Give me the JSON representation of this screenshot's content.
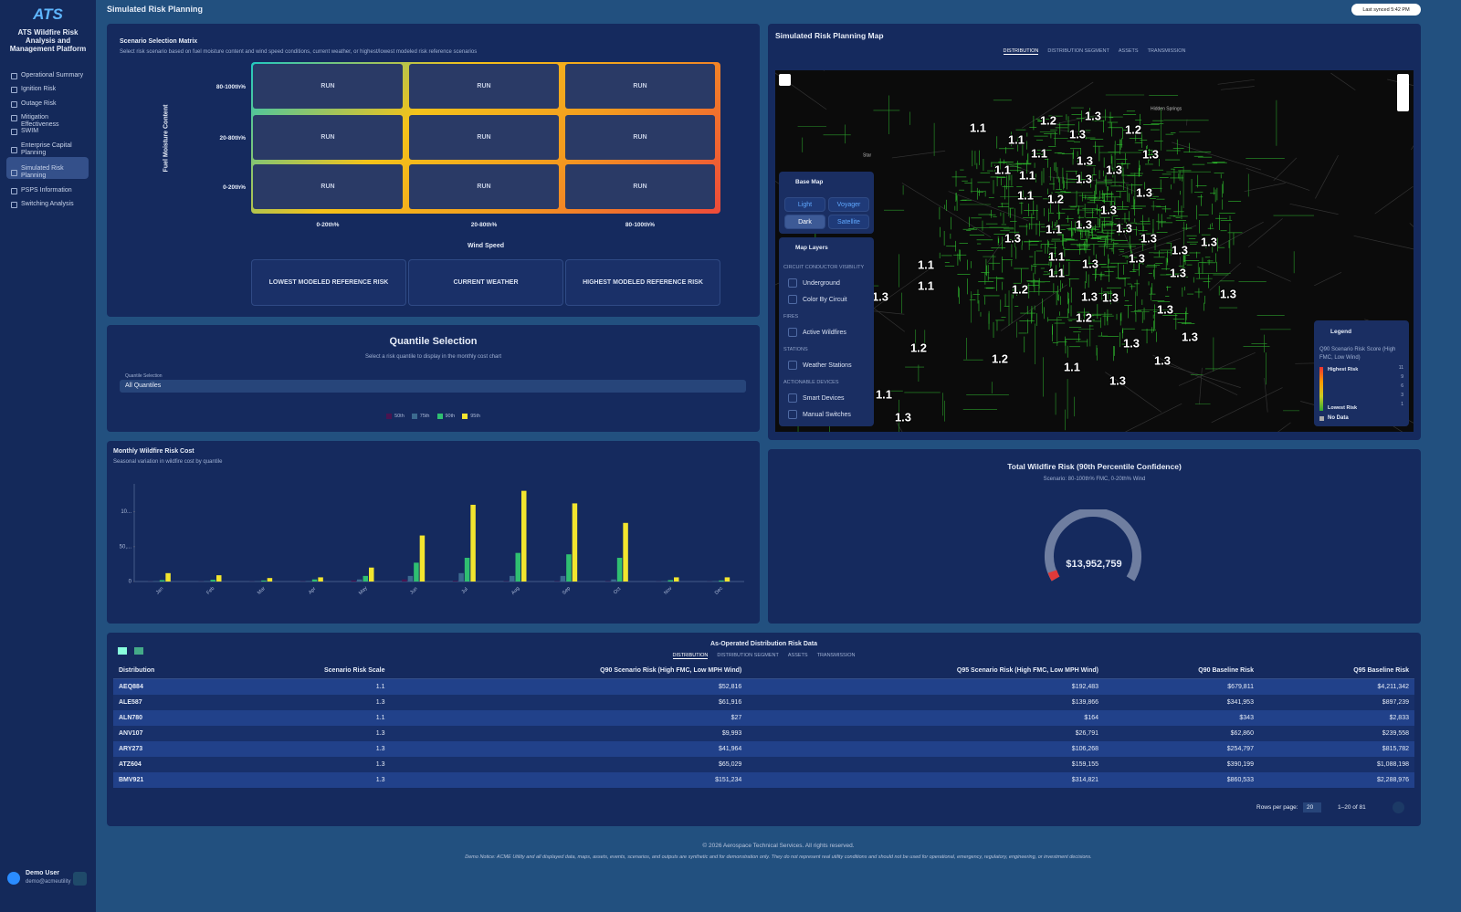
{
  "sidebar": {
    "logo": "ATS",
    "title": "ATS Wildfire Risk Analysis and Management Platform",
    "nav": [
      "Operational Summary",
      "Ignition Risk",
      "Outage Risk",
      "Mitigation Effectiveness",
      "SWIM",
      "Enterprise Capital Planning",
      "Simulated Risk Planning",
      "PSPS Information",
      "Switching Analysis"
    ],
    "user": {
      "name": "Demo User",
      "email": "demo@acmeutility"
    }
  },
  "header": {
    "title": "Simulated Risk Planning",
    "sync": "Last synced 5:42 PM"
  },
  "matrix": {
    "title": "Scenario Selection Matrix",
    "subtitle": "Select risk scenario based on fuel moisture content and wind speed conditions, current weather, or highest/lowest modeled risk reference scenarios",
    "y_label": "Fuel Moisture Content",
    "rows": [
      "80-100th%",
      "20-80th%",
      "0-20th%"
    ],
    "cols": [
      "0-20th%",
      "20-80th%",
      "80-100th%"
    ],
    "x_label": "Wind Speed",
    "cells": [
      [
        "RUN",
        "RUN",
        "RUN"
      ],
      [
        "RUN",
        "RUN",
        "RUN"
      ],
      [
        "RUN",
        "RUN",
        "RUN"
      ]
    ],
    "references": [
      "LOWEST MODELED REFERENCE RISK",
      "CURRENT WEATHER",
      "HIGHEST MODELED REFERENCE RISK"
    ]
  },
  "quantile": {
    "title": "Quantile Selection",
    "subtitle": "Select a risk quantile to display in the monthly cost chart",
    "select_label": "Quantile Selection",
    "select_value": "All Quantiles"
  },
  "chart_data": {
    "type": "bar",
    "title": "Monthly Wildfire Risk Cost",
    "subtitle": "Seasonal variation in wildfire cost by quantile",
    "categories": [
      "Jan",
      "Feb",
      "Mar",
      "Apr",
      "May",
      "Jun",
      "Jul",
      "Aug",
      "Sep",
      "Oct",
      "Nov",
      "Dec"
    ],
    "series": [
      {
        "name": "50th",
        "color": "#4a1450",
        "values": [
          200,
          200,
          200,
          300,
          1500,
          3000,
          1000,
          500,
          500,
          500,
          200,
          200
        ]
      },
      {
        "name": "75th",
        "color": "#3b6a8f",
        "values": [
          500,
          600,
          400,
          700,
          3000,
          8000,
          12000,
          8000,
          8000,
          3000,
          500,
          500
        ]
      },
      {
        "name": "90th",
        "color": "#2fbf71",
        "values": [
          2000,
          2500,
          1500,
          3000,
          8000,
          27000,
          34000,
          41000,
          39000,
          34000,
          2000,
          1500
        ]
      },
      {
        "name": "95th",
        "color": "#f2e52e",
        "values": [
          12000,
          9000,
          5000,
          6000,
          20000,
          66000,
          110000,
          130000,
          112000,
          84000,
          6000,
          6000
        ]
      }
    ],
    "ylim": [
      0,
      140000
    ],
    "yticks": [
      0,
      {
        "value": 50000,
        "label": "50,..."
      },
      {
        "value": 100000,
        "label": "10..."
      }
    ]
  },
  "map": {
    "title": "Simulated Risk Planning Map",
    "tabs": [
      "DISTRIBUTION",
      "DISTRIBUTION SEGMENT",
      "ASSETS",
      "TRANSMISSION"
    ],
    "places": [
      "Star",
      "Hidden Springs"
    ],
    "labels": [
      1.1,
      1.2,
      1.3,
      1.2,
      1.3,
      1.1,
      1.1,
      1.3,
      1.3,
      1.3,
      1.1,
      1.1,
      1.3,
      1.1,
      1.2,
      1.3,
      1.3,
      1.1,
      1.3,
      1.3,
      1.3,
      1.3,
      1.3,
      1.3,
      1.1,
      1.3,
      1.3,
      1.1,
      1.1,
      1.3,
      1.1,
      1.2,
      1.3,
      1.3,
      1.3,
      1.3,
      1.3,
      1.2,
      1.3,
      1.3,
      1.2,
      1.2,
      1.1,
      1.3,
      1.3,
      1.1,
      1.3
    ],
    "base_map": {
      "title": "Base Map",
      "options": [
        "Light",
        "Voyager",
        "Dark",
        "Satellite"
      ]
    },
    "layers": {
      "title": "Map Layers",
      "groups": [
        {
          "name": "CIRCUIT CONDUCTOR VISIBILITY",
          "items": [
            "Underground",
            "Color By Circuit"
          ]
        },
        {
          "name": "FIRES",
          "items": [
            "Active Wildfires"
          ]
        },
        {
          "name": "STATIONS",
          "items": [
            "Weather Stations"
          ]
        },
        {
          "name": "ACTIONABLE DEVICES",
          "items": [
            "Smart Devices",
            "Manual Switches"
          ]
        }
      ]
    },
    "legend": {
      "title": "Legend",
      "subtitle": "Q90 Scenario Risk Score (High FMC, Low Wind)",
      "high": "Highest Risk",
      "low": "Lowest Risk",
      "ticks": [
        11,
        9,
        6,
        3,
        1
      ],
      "no_data": "No Data"
    }
  },
  "total": {
    "title": "Total Wildfire Risk (90th Percentile Confidence)",
    "subtitle": "Scenario: 80-100th% FMC, 0-20th% Wind",
    "value": "$13,952,759"
  },
  "table": {
    "title": "As-Operated Distribution Risk Data",
    "tabs": [
      "DISTRIBUTION",
      "DISTRIBUTION SEGMENT",
      "ASSETS",
      "TRANSMISSION"
    ],
    "columns": [
      "Distribution",
      "Scenario Risk Scale",
      "Q90 Scenario Risk (High FMC, Low MPH Wind)",
      "Q95 Scenario Risk (High FMC, Low MPH Wind)",
      "Q90 Baseline Risk",
      "Q95 Baseline Risk"
    ],
    "rows": [
      [
        "AEQ884",
        1.1,
        "$52,816",
        "$192,483",
        "$679,811",
        "$4,211,342"
      ],
      [
        "ALE587",
        1.3,
        "$61,916",
        "$139,866",
        "$341,953",
        "$897,239"
      ],
      [
        "ALN780",
        1.1,
        "$27",
        "$164",
        "$343",
        "$2,833"
      ],
      [
        "ANV107",
        1.3,
        "$9,993",
        "$26,791",
        "$62,860",
        "$239,558"
      ],
      [
        "ARY273",
        1.3,
        "$41,964",
        "$106,268",
        "$254,797",
        "$815,782"
      ],
      [
        "ATZ604",
        1.3,
        "$65,029",
        "$159,155",
        "$390,199",
        "$1,088,198"
      ],
      [
        "BMV921",
        1.3,
        "$151,234",
        "$314,821",
        "$860,533",
        "$2,288,976"
      ]
    ],
    "rows_per_page_label": "Rows per page:",
    "rows_per_page": 20,
    "range": "1–20 of 81"
  },
  "footer": {
    "copyright": "© 2026 Aerospace Technical Services. All rights reserved.",
    "notice": "Demo Notice: ACME Utility and all displayed data, maps, assets, events, scenarios, and outputs are synthetic and for demonstration only. They do not represent real utility conditions and should not be used for operational, emergency, regulatory, engineering, or investment decisions."
  }
}
